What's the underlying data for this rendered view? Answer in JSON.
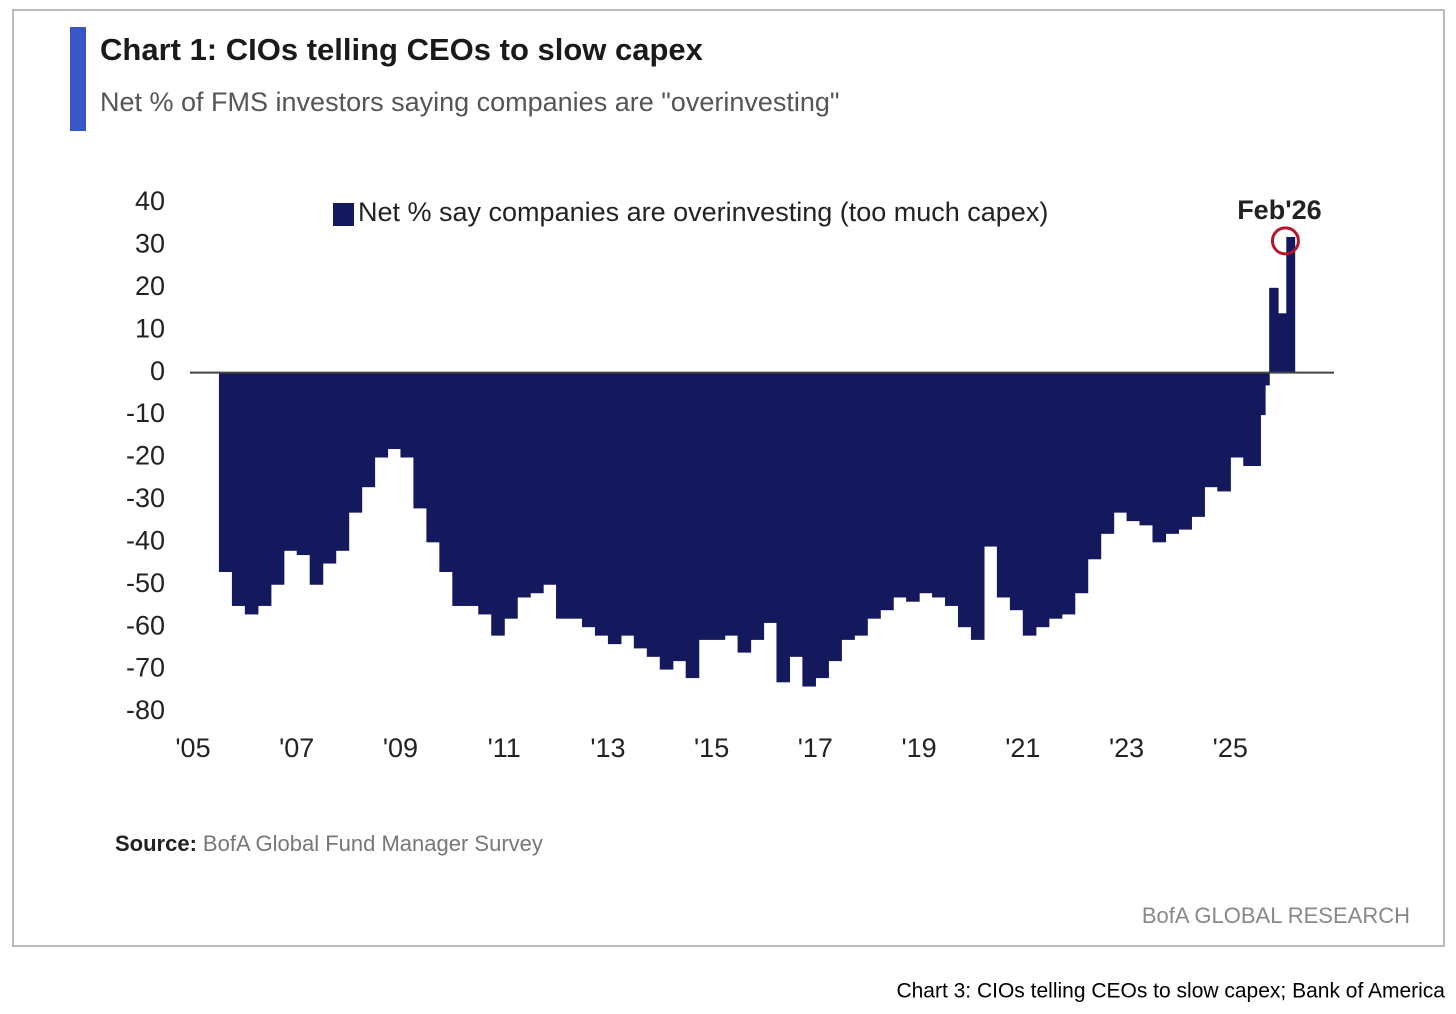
{
  "chart_data": {
    "type": "bar",
    "title": "Chart 1: CIOs telling CEOs to slow capex",
    "subtitle": "Net % of FMS investors saying companies are \"overinvesting\"",
    "annotation": "Feb'26",
    "legend": "top",
    "x": [
      2005.5,
      2005.75,
      2006.0,
      2006.25,
      2006.5,
      2006.75,
      2007.0,
      2007.25,
      2007.5,
      2007.75,
      2008.0,
      2008.25,
      2008.5,
      2008.75,
      2009.0,
      2009.25,
      2009.5,
      2009.75,
      2010.0,
      2010.25,
      2010.5,
      2010.75,
      2011.0,
      2011.25,
      2011.5,
      2011.75,
      2012.0,
      2012.25,
      2012.5,
      2012.75,
      2013.0,
      2013.25,
      2013.5,
      2013.75,
      2014.0,
      2014.25,
      2014.5,
      2014.75,
      2015.0,
      2015.25,
      2015.5,
      2015.75,
      2016.0,
      2016.25,
      2016.5,
      2016.75,
      2017.0,
      2017.25,
      2017.5,
      2017.75,
      2018.0,
      2018.25,
      2018.5,
      2018.75,
      2019.0,
      2019.25,
      2019.5,
      2019.75,
      2020.0,
      2020.25,
      2020.5,
      2020.75,
      2021.0,
      2021.25,
      2021.5,
      2021.75,
      2022.0,
      2022.25,
      2022.5,
      2022.75,
      2023.0,
      2023.25,
      2023.5,
      2023.75,
      2024.0,
      2024.25,
      2024.5,
      2024.75,
      2025.0,
      2025.25,
      2025.5,
      2025.58,
      2025.67,
      2025.75,
      2025.83,
      2025.92,
      2026.08
    ],
    "series": [
      {
        "name": "Net % say companies are overinvesting (too much capex)",
        "color": "#14195e",
        "values": [
          -47,
          -55,
          -57,
          -55,
          -50,
          -42,
          -43,
          -50,
          -45,
          -42,
          -33,
          -27,
          -20,
          -18,
          -20,
          -32,
          -40,
          -47,
          -55,
          -55,
          -57,
          -62,
          -58,
          -53,
          -52,
          -50,
          -58,
          -58,
          -60,
          -62,
          -64,
          -62,
          -65,
          -67,
          -70,
          -68,
          -72,
          -63,
          -63,
          -62,
          -66,
          -63,
          -59,
          -73,
          -67,
          -74,
          -72,
          -68,
          -63,
          -62,
          -58,
          -56,
          -53,
          -54,
          -52,
          -53,
          -55,
          -60,
          -63,
          -41,
          -53,
          -56,
          -62,
          -60,
          -58,
          -57,
          -52,
          -44,
          -38,
          -33,
          -35,
          -36,
          -40,
          -38,
          -37,
          -34,
          -27,
          -28,
          -20,
          -22,
          -22,
          -10,
          -3,
          20,
          20,
          14,
          32
        ]
      }
    ],
    "xlim": [
      2005,
      2027
    ],
    "xticks": [
      {
        "value": 2005,
        "label": "'05"
      },
      {
        "value": 2007,
        "label": "'07"
      },
      {
        "value": 2009,
        "label": "'09"
      },
      {
        "value": 2011,
        "label": "'11"
      },
      {
        "value": 2013,
        "label": "'13"
      },
      {
        "value": 2015,
        "label": "'15"
      },
      {
        "value": 2017,
        "label": "'17"
      },
      {
        "value": 2019,
        "label": "'19"
      },
      {
        "value": 2021,
        "label": "'21"
      },
      {
        "value": 2023,
        "label": "'23"
      },
      {
        "value": 2025,
        "label": "'25"
      }
    ],
    "ylim": [
      -80,
      40
    ],
    "yticks": [
      40,
      30,
      20,
      10,
      0,
      -10,
      -20,
      -30,
      -40,
      -50,
      -60,
      -70,
      -80
    ],
    "grid": false
  },
  "footer": {
    "source_label": "Source:",
    "source": "BofA Global Fund Manager Survey",
    "brand": "BofA GLOBAL RESEARCH"
  },
  "caption": "Chart 3: CIOs telling CEOs to slow capex; Bank of America"
}
